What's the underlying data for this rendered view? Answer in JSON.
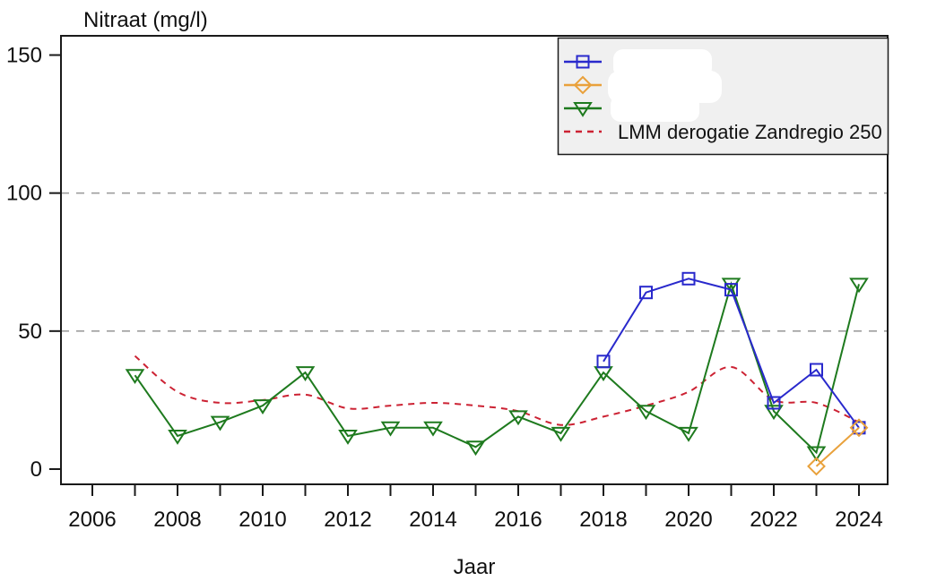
{
  "chart_data": {
    "type": "line",
    "title": "Nitraat (mg/l)",
    "xlabel": "Jaar",
    "ylabel": "",
    "xlim": [
      2005.3,
      2024.7
    ],
    "ylim": [
      0,
      157
    ],
    "yticks": [
      0,
      50,
      100,
      150
    ],
    "xticks": [
      2006,
      2007,
      2008,
      2009,
      2010,
      2011,
      2012,
      2013,
      2014,
      2015,
      2016,
      2017,
      2018,
      2019,
      2020,
      2021,
      2022,
      2023,
      2024
    ],
    "xtick_labels": [
      "2006",
      "2008",
      "2010",
      "2012",
      "2014",
      "2016",
      "2018",
      "2020",
      "2022",
      "2024"
    ],
    "gridlines_y": [
      50,
      100
    ],
    "grid_style": "horizontal dashed gray",
    "legend_position": "top-right",
    "colors": {
      "blue": "#2929cc",
      "orange": "#e9a13b",
      "green": "#1e7a1e",
      "red": "#cc2233",
      "grid": "#9e9e9e",
      "legend_bg": "#f0f0f0"
    },
    "series": [
      {
        "label": "",
        "redacted": true,
        "color": "#2929cc",
        "marker": "square",
        "line": "solid",
        "x": [
          2018,
          2019,
          2020,
          2021,
          2022,
          2023,
          2024
        ],
        "y": [
          39,
          64,
          69,
          65,
          24,
          36,
          15
        ]
      },
      {
        "label": "",
        "redacted": true,
        "color": "#e9a13b",
        "marker": "diamond",
        "line": "solid",
        "x": [
          2023,
          2024
        ],
        "y": [
          1,
          15
        ]
      },
      {
        "label": "",
        "redacted": true,
        "color": "#1e7a1e",
        "marker": "triangle-down",
        "line": "solid",
        "x": [
          2007,
          2008,
          2009,
          2010,
          2011,
          2012,
          2013,
          2014,
          2015,
          2016,
          2017,
          2018,
          2019,
          2020,
          2021,
          2022,
          2023,
          2024
        ],
        "y": [
          34,
          12,
          17,
          23,
          35,
          12,
          15,
          15,
          8,
          19,
          13,
          35,
          21,
          13,
          67,
          21,
          6,
          67
        ]
      },
      {
        "label": "LMM derogatie Zandregio 250",
        "redacted": false,
        "color": "#cc2233",
        "marker": "none",
        "line": "dashed",
        "x": [
          2007,
          2008,
          2009,
          2010,
          2011,
          2012,
          2013,
          2014,
          2015,
          2016,
          2017,
          2018,
          2019,
          2020,
          2021,
          2022,
          2023,
          2024
        ],
        "y": [
          41,
          28,
          24,
          25,
          27,
          22,
          23,
          24,
          23,
          21,
          16,
          19,
          23,
          28,
          37,
          25,
          24,
          17
        ]
      }
    ]
  }
}
